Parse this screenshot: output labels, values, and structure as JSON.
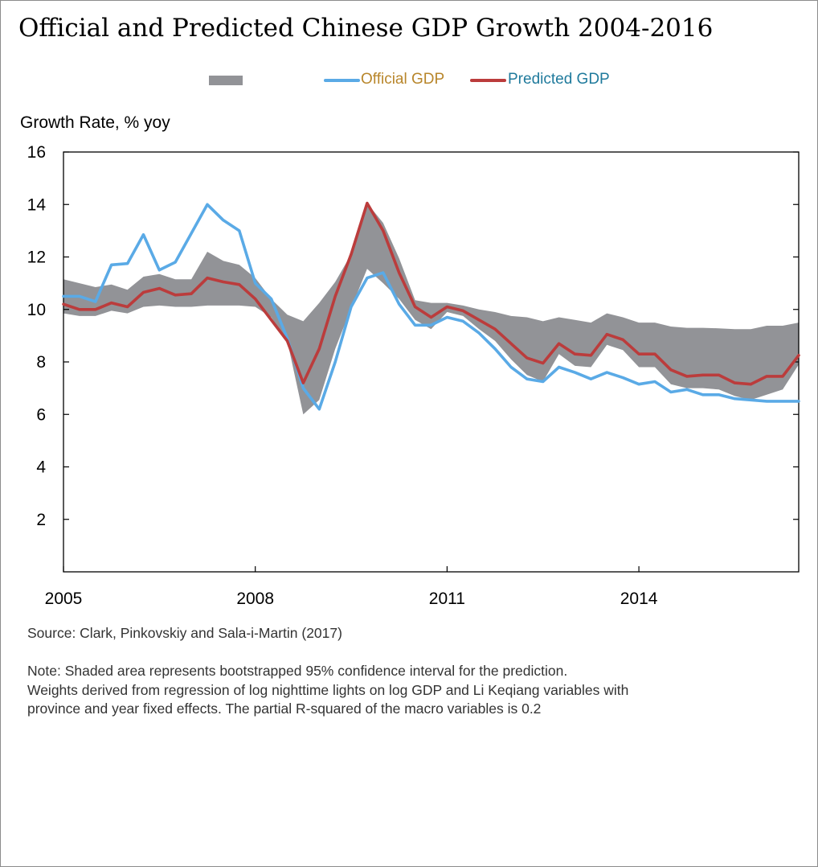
{
  "title": "Official and Predicted Chinese GDP Growth 2004-2016",
  "legend": {
    "band_color": "#929397",
    "official_label": "Official GDP",
    "official_label_color": "#b8862b",
    "official_line_color": "#5aaae6",
    "predicted_label": "Predicted GDP",
    "predicted_label_color": "#1f7a9c",
    "predicted_line_color": "#bb3c3c"
  },
  "y_axis_label": "Growth Rate, % yoy",
  "source": "Source:  Clark, Pinkovskiy and Sala-i-Martin (2017)",
  "note_lines": [
    "Note:  Shaded area represents bootstrapped 95% confidence interval for the prediction.",
    "Weights derived from regression of log nighttime lights on log GDP and Li Keqiang variables with",
    "province and year fixed effects. The partial R-squared of the macro variables is 0.2"
  ],
  "chart_data": {
    "type": "line",
    "title": "Official and Predicted Chinese GDP Growth 2004-2016",
    "ylabel": "Growth Rate, % yoy",
    "xlabel": "",
    "ylim": [
      0,
      16
    ],
    "yticks": [
      2,
      4,
      6,
      8,
      10,
      12,
      14,
      16
    ],
    "xlim": [
      2005,
      2016.5
    ],
    "xticks": [
      2005,
      2008,
      2011,
      2014
    ],
    "x": [
      2005.0,
      2005.25,
      2005.5,
      2005.75,
      2006.0,
      2006.25,
      2006.5,
      2006.75,
      2007.0,
      2007.25,
      2007.5,
      2007.75,
      2008.0,
      2008.25,
      2008.5,
      2008.75,
      2009.0,
      2009.25,
      2009.5,
      2009.75,
      2010.0,
      2010.25,
      2010.5,
      2010.75,
      2011.0,
      2011.25,
      2011.5,
      2011.75,
      2012.0,
      2012.25,
      2012.5,
      2012.75,
      2013.0,
      2013.25,
      2013.5,
      2013.75,
      2014.0,
      2014.25,
      2014.5,
      2014.75,
      2015.0,
      2015.25,
      2015.5,
      2015.75,
      2016.0,
      2016.25,
      2016.5
    ],
    "series": [
      {
        "name": "Official GDP",
        "color": "#5aaae6",
        "values": [
          10.5,
          10.5,
          10.3,
          11.7,
          11.75,
          12.85,
          11.5,
          11.8,
          12.9,
          14.0,
          13.4,
          13.0,
          11.0,
          10.4,
          8.9,
          7.0,
          6.2,
          8.0,
          10.1,
          11.2,
          11.4,
          10.2,
          9.4,
          9.4,
          9.7,
          9.55,
          9.1,
          8.5,
          7.8,
          7.35,
          7.25,
          7.8,
          7.6,
          7.35,
          7.6,
          7.4,
          7.15,
          7.25,
          6.85,
          6.95,
          6.75,
          6.75,
          6.6,
          6.55,
          6.5,
          6.5,
          6.5
        ]
      },
      {
        "name": "Predicted GDP",
        "color": "#bb3c3c",
        "values": [
          10.2,
          10.0,
          10.0,
          10.25,
          10.1,
          10.65,
          10.8,
          10.55,
          10.6,
          11.2,
          11.05,
          10.95,
          10.4,
          9.6,
          8.8,
          7.2,
          8.5,
          10.5,
          12.1,
          14.05,
          13.0,
          11.4,
          10.1,
          9.7,
          10.1,
          9.95,
          9.6,
          9.25,
          8.7,
          8.15,
          7.95,
          8.7,
          8.3,
          8.25,
          9.05,
          8.85,
          8.3,
          8.3,
          7.7,
          7.45,
          7.5,
          7.5,
          7.2,
          7.15,
          7.45,
          7.45,
          8.25
        ]
      }
    ],
    "band": {
      "name": "",
      "color": "#929397",
      "upper": [
        11.15,
        11.0,
        10.85,
        10.95,
        10.75,
        11.25,
        11.35,
        11.15,
        11.15,
        12.2,
        11.85,
        11.7,
        11.2,
        10.4,
        9.8,
        9.55,
        10.25,
        11.05,
        12.1,
        14.05,
        13.3,
        11.95,
        10.35,
        10.25,
        10.25,
        10.15,
        10.0,
        9.9,
        9.75,
        9.7,
        9.55,
        9.7,
        9.6,
        9.5,
        9.85,
        9.7,
        9.5,
        9.5,
        9.35,
        9.3,
        9.3,
        9.28,
        9.25,
        9.25,
        9.38,
        9.38,
        9.5
      ],
      "lower": [
        9.85,
        9.75,
        9.75,
        9.95,
        9.85,
        10.1,
        10.15,
        10.1,
        10.1,
        10.15,
        10.15,
        10.15,
        10.1,
        9.7,
        8.8,
        6.0,
        6.55,
        8.5,
        10.05,
        11.55,
        11.0,
        10.4,
        9.6,
        9.25,
        9.9,
        9.75,
        9.25,
        8.8,
        8.1,
        7.5,
        7.25,
        8.3,
        7.85,
        7.8,
        8.65,
        8.45,
        7.8,
        7.8,
        7.15,
        7.0,
        7.0,
        6.95,
        6.7,
        6.55,
        6.75,
        6.95,
        7.9
      ]
    },
    "grid": false,
    "legend_position": "top"
  }
}
